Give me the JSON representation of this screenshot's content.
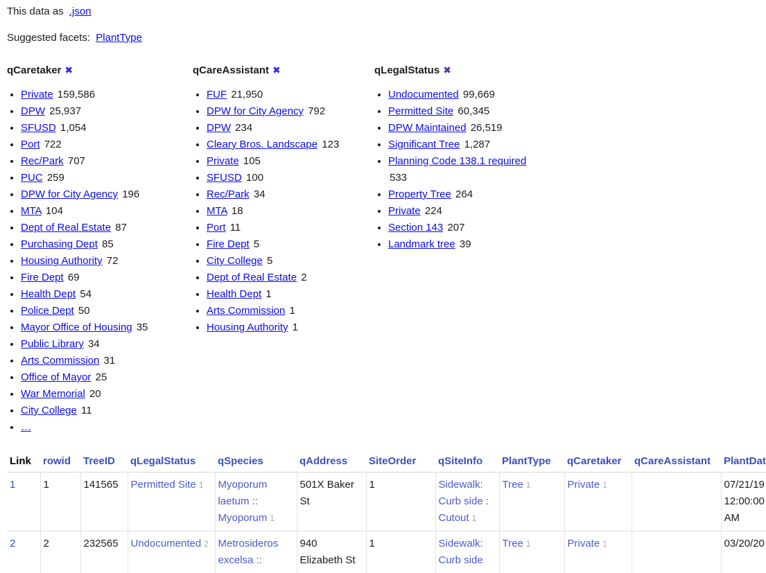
{
  "header": {
    "data_as_prefix": "This data as",
    "json_label": ".json",
    "suggested_prefix": "Suggested facets:",
    "suggested_links": [
      "PlantType"
    ]
  },
  "icons": {
    "remove_facet": "✖"
  },
  "facets": [
    {
      "name": "qCaretaker",
      "remove_label": "✖",
      "remove_visited": false,
      "truncated": true,
      "ellipsis_label": "…",
      "items": [
        {
          "label": "Private",
          "count": "159,586"
        },
        {
          "label": "DPW",
          "count": "25,937"
        },
        {
          "label": "SFUSD",
          "count": "1,054"
        },
        {
          "label": "Port",
          "count": "722"
        },
        {
          "label": "Rec/Park",
          "count": "707"
        },
        {
          "label": "PUC",
          "count": "259"
        },
        {
          "label": "DPW for City Agency",
          "count": "196"
        },
        {
          "label": "MTA",
          "count": "104"
        },
        {
          "label": "Dept of Real Estate",
          "count": "87"
        },
        {
          "label": "Purchasing Dept",
          "count": "85"
        },
        {
          "label": "Housing Authority",
          "count": "72"
        },
        {
          "label": "Fire Dept",
          "count": "69"
        },
        {
          "label": "Health Dept",
          "count": "54"
        },
        {
          "label": "Police Dept",
          "count": "50"
        },
        {
          "label": "Mayor Office of Housing",
          "count": "35"
        },
        {
          "label": "Public Library",
          "count": "34"
        },
        {
          "label": "Arts Commission",
          "count": "31"
        },
        {
          "label": "Office of Mayor",
          "count": "25"
        },
        {
          "label": "War Memorial",
          "count": "20"
        },
        {
          "label": "City College",
          "count": "11"
        }
      ]
    },
    {
      "name": "qCareAssistant",
      "remove_label": "✖",
      "remove_visited": false,
      "truncated": false,
      "ellipsis_label": "…",
      "items": [
        {
          "label": "FUF",
          "count": "21,950"
        },
        {
          "label": "DPW for City Agency",
          "count": "792"
        },
        {
          "label": "DPW",
          "count": "234"
        },
        {
          "label": "Cleary Bros. Landscape",
          "count": "123"
        },
        {
          "label": "Private",
          "count": "105"
        },
        {
          "label": "SFUSD",
          "count": "100"
        },
        {
          "label": "Rec/Park",
          "count": "34"
        },
        {
          "label": "MTA",
          "count": "18"
        },
        {
          "label": "Port",
          "count": "11"
        },
        {
          "label": "Fire Dept",
          "count": "5"
        },
        {
          "label": "City College",
          "count": "5"
        },
        {
          "label": "Dept of Real Estate",
          "count": "2"
        },
        {
          "label": "Health Dept",
          "count": "1"
        },
        {
          "label": "Arts Commission",
          "count": "1"
        },
        {
          "label": "Housing Authority",
          "count": "1"
        }
      ]
    },
    {
      "name": "qLegalStatus",
      "remove_label": "✖",
      "remove_visited": true,
      "truncated": false,
      "ellipsis_label": "…",
      "items": [
        {
          "label": "Undocumented",
          "count": "99,669"
        },
        {
          "label": "Permitted Site",
          "count": "60,345"
        },
        {
          "label": "DPW Maintained",
          "count": "26,519"
        },
        {
          "label": "Significant Tree",
          "count": "1,287"
        },
        {
          "label": "Planning Code 138.1 required",
          "count": "533"
        },
        {
          "label": "Property Tree",
          "count": "264"
        },
        {
          "label": "Private",
          "count": "224"
        },
        {
          "label": "Section 143",
          "count": "207"
        },
        {
          "label": "Landmark tree",
          "count": "39"
        }
      ]
    }
  ],
  "table": {
    "columns": [
      {
        "label": "Link",
        "sortable": false
      },
      {
        "label": "rowid",
        "sortable": true
      },
      {
        "label": "TreeID",
        "sortable": true
      },
      {
        "label": "qLegalStatus",
        "sortable": true
      },
      {
        "label": "qSpecies",
        "sortable": true
      },
      {
        "label": "qAddress",
        "sortable": true
      },
      {
        "label": "SiteOrder",
        "sortable": true
      },
      {
        "label": "qSiteInfo",
        "sortable": true
      },
      {
        "label": "PlantType",
        "sortable": true
      },
      {
        "label": "qCaretaker",
        "sortable": true
      },
      {
        "label": "qCareAssistant",
        "sortable": true
      },
      {
        "label": "PlantDate",
        "sortable": true
      }
    ],
    "rows": [
      {
        "cells": [
          {
            "type": "rowlink",
            "text": "1"
          },
          {
            "type": "text",
            "text": "1"
          },
          {
            "type": "text",
            "text": "141565"
          },
          {
            "type": "fk",
            "text": "Permitted Site",
            "id": "1"
          },
          {
            "type": "fk",
            "text": "Myoporum laetum :: Myoporum",
            "id": "1"
          },
          {
            "type": "text",
            "text": "501X Baker St"
          },
          {
            "type": "text",
            "text": "1"
          },
          {
            "type": "fk",
            "text": "Sidewalk: Curb side : Cutout",
            "id": "1"
          },
          {
            "type": "fk",
            "text": "Tree",
            "id": "1"
          },
          {
            "type": "fk",
            "text": "Private",
            "id": "1"
          },
          {
            "type": "text",
            "text": ""
          },
          {
            "type": "text",
            "text": "07/21/19 12:00:00 AM"
          }
        ]
      },
      {
        "cells": [
          {
            "type": "rowlink",
            "text": "2"
          },
          {
            "type": "text",
            "text": "2"
          },
          {
            "type": "text",
            "text": "232565"
          },
          {
            "type": "fk",
            "text": "Undocumented",
            "id": "2"
          },
          {
            "type": "link",
            "text": "Metrosideros excelsa ::"
          },
          {
            "type": "text",
            "text": "940 Elizabeth St"
          },
          {
            "type": "text",
            "text": "1"
          },
          {
            "type": "link",
            "text": "Sidewalk: Curb side"
          },
          {
            "type": "fk",
            "text": "Tree",
            "id": "1"
          },
          {
            "type": "fk",
            "text": "Private",
            "id": "1"
          },
          {
            "type": "text",
            "text": ""
          },
          {
            "type": "text",
            "text": "03/20/20"
          }
        ]
      }
    ]
  }
}
